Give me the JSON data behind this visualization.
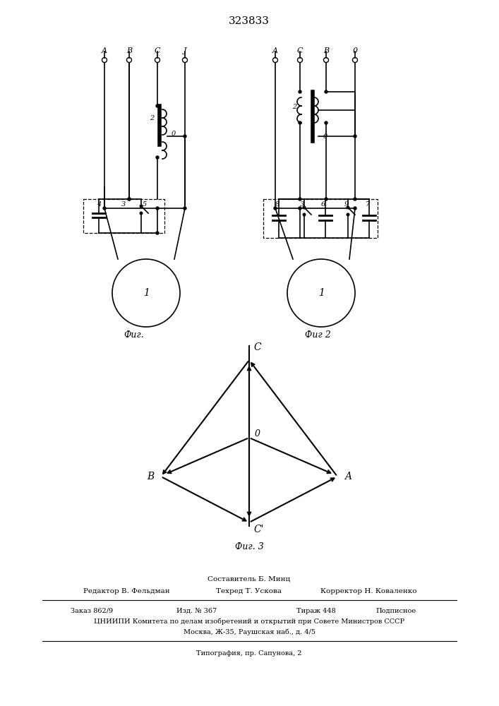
{
  "title": "323833",
  "fig1_label": "Фиг.",
  "fig2_label": "Фиг 2",
  "fig3_label": "Фиг. 3",
  "footer_composer": "Составитель Б. Минц",
  "footer_editor": "Редактор В. Фельдман",
  "footer_tech": "Техред Т. Ускова",
  "footer_corr": "Корректор Н. Коваленко",
  "footer_order": "Заказ 862/9",
  "footer_izd": "Изд. № 367",
  "footer_tirazh": "Тираж 448",
  "footer_podp": "Подписное",
  "footer_org": "ЦНИИПИ Комитета по делам изобретений и открытий при Совете Министров СССР",
  "footer_addr": "Москва, Ж-35, Раушская наб., д. 4/5",
  "footer_print": "Типография, пр. Сапунова, 2",
  "bg_color": "#ffffff",
  "lc": "#000000"
}
